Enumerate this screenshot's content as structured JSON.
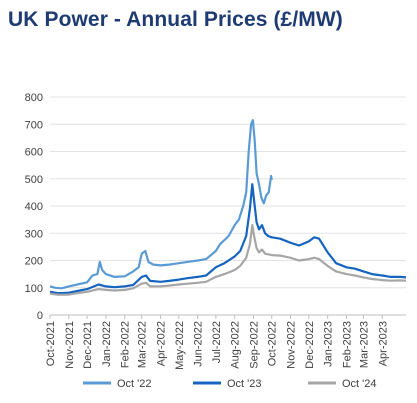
{
  "title": "UK Power - Annual Prices (£/MW)",
  "chart_data": {
    "type": "line",
    "title": "UK Power - Annual Prices (£/MW)",
    "xlabel": "",
    "ylabel": "",
    "ylim": [
      0,
      800
    ],
    "yticks": [
      0,
      100,
      200,
      300,
      400,
      500,
      600,
      700,
      800
    ],
    "x_range": [
      "2021-10-01",
      "2023-05-10"
    ],
    "xticks": [
      "Oct-2021",
      "Nov-2021",
      "Dec-2021",
      "Jan-2022",
      "Feb-2022",
      "Mar-2022",
      "Apr-2022",
      "May-2022",
      "Jun-2022",
      "Jul-2022",
      "Aug-2022",
      "Sep-2022",
      "Oct-2022",
      "Nov-2022",
      "Dec-2022",
      "Jan-2023",
      "Feb-2023",
      "Mar-2023",
      "Apr-2023"
    ],
    "grid": "horizontal",
    "legend": "bottom",
    "series": [
      {
        "name": "Oct '22",
        "color": "#5b9bd5",
        "points": [
          [
            "2021-10-01",
            105
          ],
          [
            "2021-10-10",
            100
          ],
          [
            "2021-10-20",
            98
          ],
          [
            "2021-11-01",
            105
          ],
          [
            "2021-11-15",
            112
          ],
          [
            "2021-12-01",
            120
          ],
          [
            "2021-12-10",
            145
          ],
          [
            "2021-12-18",
            150
          ],
          [
            "2021-12-22",
            195
          ],
          [
            "2021-12-26",
            165
          ],
          [
            "2022-01-01",
            150
          ],
          [
            "2022-01-15",
            140
          ],
          [
            "2022-02-01",
            142
          ],
          [
            "2022-02-15",
            160
          ],
          [
            "2022-02-24",
            175
          ],
          [
            "2022-03-01",
            225
          ],
          [
            "2022-03-07",
            235
          ],
          [
            "2022-03-12",
            195
          ],
          [
            "2022-03-20",
            185
          ],
          [
            "2022-04-01",
            182
          ],
          [
            "2022-04-15",
            185
          ],
          [
            "2022-05-01",
            190
          ],
          [
            "2022-05-15",
            195
          ],
          [
            "2022-06-01",
            200
          ],
          [
            "2022-06-15",
            205
          ],
          [
            "2022-07-01",
            235
          ],
          [
            "2022-07-08",
            260
          ],
          [
            "2022-07-15",
            275
          ],
          [
            "2022-07-22",
            290
          ],
          [
            "2022-08-01",
            330
          ],
          [
            "2022-08-08",
            350
          ],
          [
            "2022-08-15",
            400
          ],
          [
            "2022-08-20",
            450
          ],
          [
            "2022-08-24",
            600
          ],
          [
            "2022-08-28",
            700
          ],
          [
            "2022-08-31",
            715
          ],
          [
            "2022-09-03",
            640
          ],
          [
            "2022-09-06",
            520
          ],
          [
            "2022-09-10",
            480
          ],
          [
            "2022-09-14",
            430
          ],
          [
            "2022-09-18",
            410
          ],
          [
            "2022-09-22",
            440
          ],
          [
            "2022-09-26",
            450
          ],
          [
            "2022-09-30",
            510
          ],
          [
            "2022-10-01",
            495
          ]
        ]
      },
      {
        "name": "Oct '23",
        "color": "#1565c0",
        "points": [
          [
            "2021-10-01",
            85
          ],
          [
            "2021-10-15",
            80
          ],
          [
            "2021-11-01",
            82
          ],
          [
            "2021-11-15",
            88
          ],
          [
            "2021-12-01",
            95
          ],
          [
            "2021-12-20",
            112
          ],
          [
            "2022-01-01",
            105
          ],
          [
            "2022-01-15",
            102
          ],
          [
            "2022-02-01",
            105
          ],
          [
            "2022-02-15",
            110
          ],
          [
            "2022-03-01",
            140
          ],
          [
            "2022-03-08",
            145
          ],
          [
            "2022-03-15",
            125
          ],
          [
            "2022-04-01",
            122
          ],
          [
            "2022-04-15",
            125
          ],
          [
            "2022-05-01",
            130
          ],
          [
            "2022-05-15",
            135
          ],
          [
            "2022-06-01",
            140
          ],
          [
            "2022-06-15",
            145
          ],
          [
            "2022-07-01",
            175
          ],
          [
            "2022-07-15",
            190
          ],
          [
            "2022-08-01",
            215
          ],
          [
            "2022-08-10",
            235
          ],
          [
            "2022-08-20",
            290
          ],
          [
            "2022-08-26",
            390
          ],
          [
            "2022-08-30",
            480
          ],
          [
            "2022-09-02",
            420
          ],
          [
            "2022-09-06",
            340
          ],
          [
            "2022-09-10",
            315
          ],
          [
            "2022-09-15",
            330
          ],
          [
            "2022-09-20",
            300
          ],
          [
            "2022-09-25",
            290
          ],
          [
            "2022-10-01",
            285
          ],
          [
            "2022-10-15",
            280
          ],
          [
            "2022-11-01",
            265
          ],
          [
            "2022-11-15",
            255
          ],
          [
            "2022-12-01",
            270
          ],
          [
            "2022-12-10",
            285
          ],
          [
            "2022-12-18",
            280
          ],
          [
            "2023-01-01",
            230
          ],
          [
            "2023-01-15",
            190
          ],
          [
            "2023-02-01",
            175
          ],
          [
            "2023-02-15",
            170
          ],
          [
            "2023-03-01",
            160
          ],
          [
            "2023-03-15",
            150
          ],
          [
            "2023-04-01",
            145
          ],
          [
            "2023-04-15",
            140
          ],
          [
            "2023-05-01",
            140
          ],
          [
            "2023-05-10",
            138
          ]
        ]
      },
      {
        "name": "Oct '24",
        "color": "#a6a6a6",
        "points": [
          [
            "2021-10-01",
            78
          ],
          [
            "2021-10-15",
            74
          ],
          [
            "2021-11-01",
            75
          ],
          [
            "2021-11-15",
            80
          ],
          [
            "2021-12-01",
            85
          ],
          [
            "2021-12-20",
            95
          ],
          [
            "2022-01-01",
            92
          ],
          [
            "2022-01-15",
            90
          ],
          [
            "2022-02-01",
            92
          ],
          [
            "2022-02-15",
            98
          ],
          [
            "2022-03-01",
            115
          ],
          [
            "2022-03-08",
            118
          ],
          [
            "2022-03-15",
            105
          ],
          [
            "2022-04-01",
            105
          ],
          [
            "2022-04-15",
            108
          ],
          [
            "2022-05-01",
            112
          ],
          [
            "2022-05-15",
            115
          ],
          [
            "2022-06-01",
            118
          ],
          [
            "2022-06-15",
            122
          ],
          [
            "2022-07-01",
            140
          ],
          [
            "2022-07-15",
            150
          ],
          [
            "2022-08-01",
            165
          ],
          [
            "2022-08-10",
            180
          ],
          [
            "2022-08-20",
            210
          ],
          [
            "2022-08-26",
            260
          ],
          [
            "2022-08-30",
            330
          ],
          [
            "2022-09-02",
            290
          ],
          [
            "2022-09-06",
            245
          ],
          [
            "2022-09-10",
            230
          ],
          [
            "2022-09-15",
            240
          ],
          [
            "2022-09-20",
            225
          ],
          [
            "2022-10-01",
            220
          ],
          [
            "2022-10-15",
            218
          ],
          [
            "2022-11-01",
            210
          ],
          [
            "2022-11-15",
            200
          ],
          [
            "2022-12-01",
            205
          ],
          [
            "2022-12-10",
            210
          ],
          [
            "2022-12-18",
            205
          ],
          [
            "2023-01-01",
            180
          ],
          [
            "2023-01-15",
            160
          ],
          [
            "2023-02-01",
            150
          ],
          [
            "2023-02-15",
            145
          ],
          [
            "2023-03-01",
            138
          ],
          [
            "2023-03-15",
            132
          ],
          [
            "2023-04-01",
            128
          ],
          [
            "2023-04-15",
            126
          ],
          [
            "2023-05-01",
            127
          ],
          [
            "2023-05-10",
            126
          ]
        ]
      }
    ]
  }
}
